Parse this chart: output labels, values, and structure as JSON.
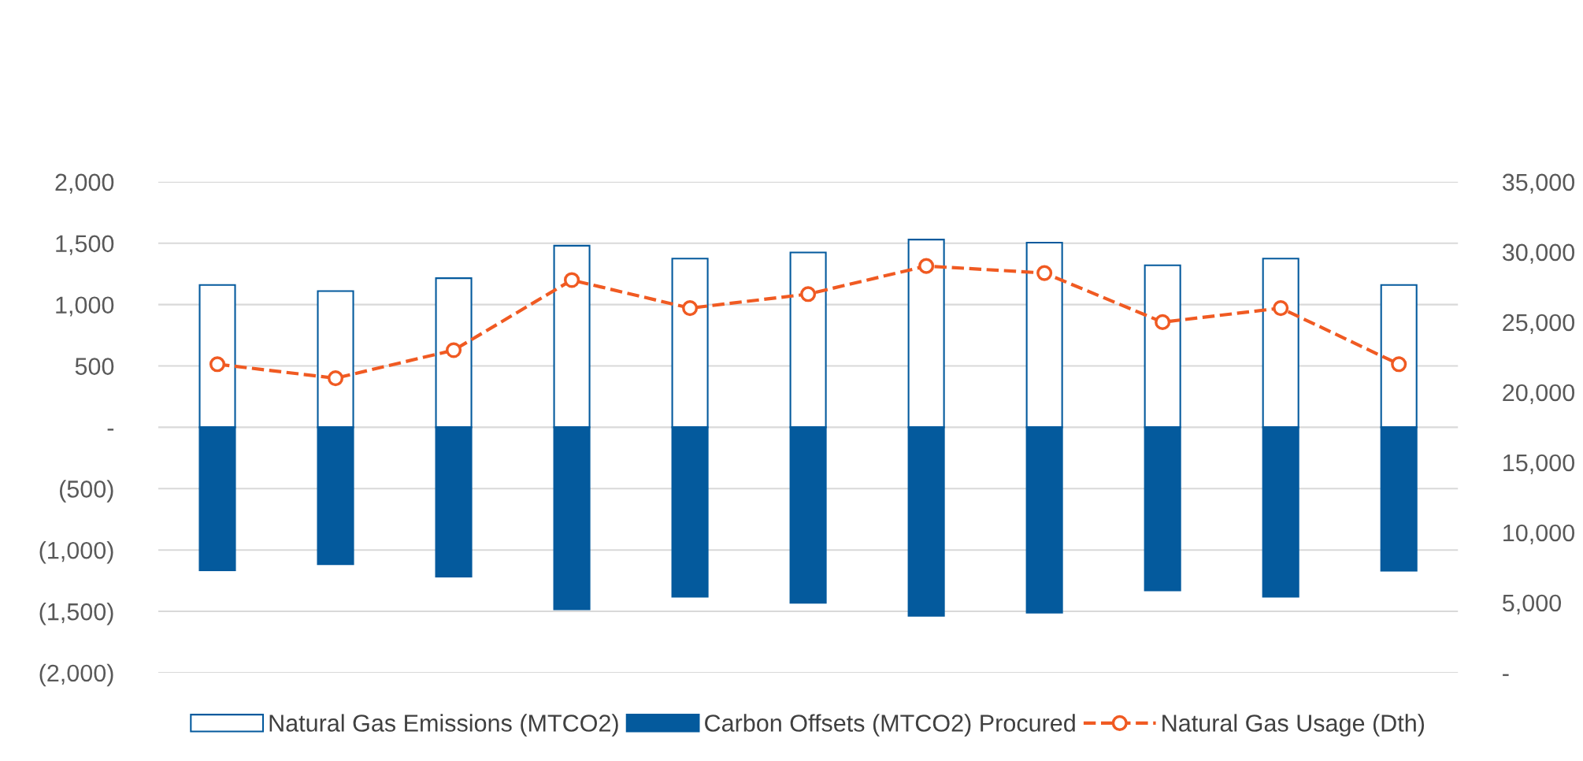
{
  "chart_data": {
    "type": "bar",
    "stacked": true,
    "categories": [
      null,
      null,
      null,
      null,
      null,
      null,
      null,
      null,
      null,
      null,
      null
    ],
    "series": [
      {
        "name": "Natural Gas Emissions (MTCO2)",
        "color": "#ffffff",
        "values": [
          1160,
          1110,
          1215,
          1480,
          1375,
          1425,
          1530,
          1505,
          1320,
          1375,
          1160
        ]
      },
      {
        "name": "Carbon Offsets (MTCO2) Procured",
        "color": "#045a9d",
        "values": [
          -1165,
          -1115,
          -1217,
          -1484,
          -1380,
          -1430,
          -1537,
          -1510,
          -1330,
          -1380,
          -1168
        ]
      },
      {
        "name": "Natural Gas Usage (Dth)",
        "type": "line",
        "axis": "y2",
        "color": "#f05a22",
        "marker": "circle",
        "line_style": "dashed",
        "values": [
          22000,
          21000,
          23000,
          28000,
          26000,
          27000,
          29000,
          28500,
          25000,
          26000,
          22000
        ]
      }
    ],
    "ylim": [
      -2000,
      2000
    ],
    "yticks": [
      {
        "value": -2000,
        "label": "(2,000)"
      },
      {
        "value": -1500,
        "label": "(1,500)"
      },
      {
        "value": -1000,
        "label": "(1,000)"
      },
      {
        "value": -500,
        "label": "(500)"
      },
      {
        "value": 0,
        "label": "-"
      },
      {
        "value": 500,
        "label": "500"
      },
      {
        "value": 1000,
        "label": "1,000"
      },
      {
        "value": 1500,
        "label": "1,500"
      },
      {
        "value": 2000,
        "label": "2,000"
      }
    ],
    "y2lim": [
      0,
      35000
    ],
    "y2ticks": [
      {
        "value": 0,
        "label": "-"
      },
      {
        "value": 5000,
        "label": "5,000"
      },
      {
        "value": 10000,
        "label": "10,000"
      },
      {
        "value": 15000,
        "label": "15,000"
      },
      {
        "value": 20000,
        "label": "20,000"
      },
      {
        "value": 25000,
        "label": "25,000"
      },
      {
        "value": 30000,
        "label": "30,000"
      },
      {
        "value": 35000,
        "label": "35,000"
      }
    ],
    "grid": "y",
    "legend": "bottom"
  }
}
